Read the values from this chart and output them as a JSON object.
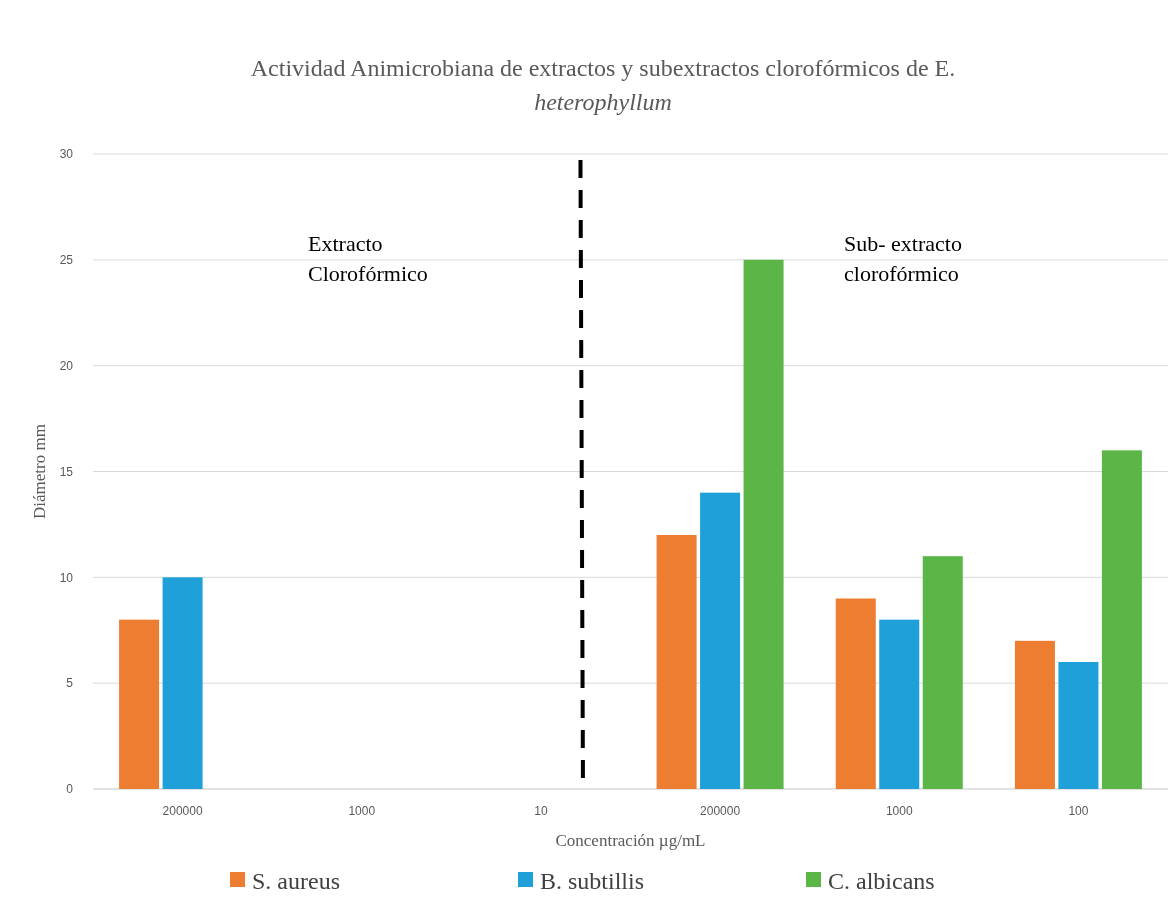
{
  "chart_data": {
    "type": "bar",
    "title": "Actividad Animicrobiana de extractos y subextractos clorofórmicos de E.\nheterophyllum",
    "xlabel": "Concentración µg/mL",
    "ylabel": "Diámetro mm",
    "categories": [
      "200000",
      "1000",
      "10",
      "200000",
      "1000",
      "100"
    ],
    "series": [
      {
        "name": "S. aureus",
        "color": "#ed7d31",
        "values": [
          8,
          0,
          0,
          12,
          9,
          7
        ]
      },
      {
        "name": "B. subtillis",
        "color": "#1fa0d8",
        "values": [
          10,
          0,
          0,
          14,
          8,
          6
        ]
      },
      {
        "name": "C. albicans",
        "color": "#5bb647",
        "values": [
          0,
          0,
          0,
          25,
          11,
          16
        ]
      }
    ],
    "ylim": [
      0,
      30
    ],
    "yticks": [
      0,
      5,
      10,
      15,
      20,
      25,
      30
    ],
    "grid": "y",
    "legend": "bottom",
    "annotations": [
      "Extracto\nClorofórmico",
      "Sub- extracto\nclorofórmico"
    ]
  }
}
